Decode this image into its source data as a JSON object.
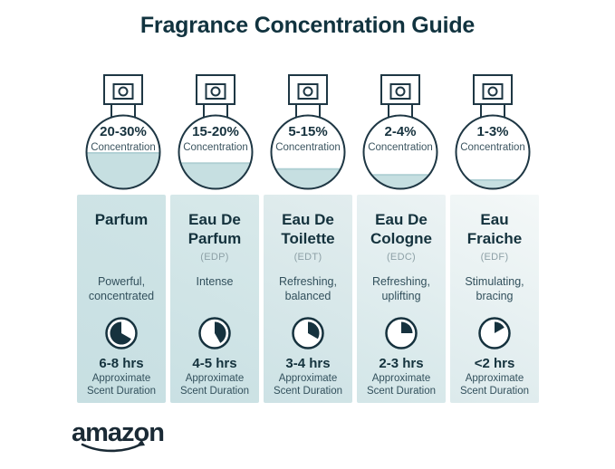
{
  "page": {
    "title": "Fragrance Concentration Guide",
    "brand_logo": "amazon"
  },
  "colors": {
    "title_text": "#11333f",
    "outline": "#1e3744",
    "liquid_fill": "#c6dfe1",
    "panel_teal": "#cfe4e6",
    "panel_light": "#f4f8f8",
    "abbr_gray": "#8da0a6"
  },
  "shared": {
    "concentration_label": "Concentration",
    "duration_label": "Approximate Scent Duration"
  },
  "columns": [
    {
      "concentration": "20-30%",
      "bottle_fill_percent": 50,
      "name": "Parfum",
      "abbr": "",
      "description": "Powerful, concentrated",
      "duration": "6-8 hrs",
      "clock": {
        "start_deg": 120,
        "end_deg": 360,
        "filled_hours_of_12": 8
      }
    },
    {
      "concentration": "15-20%",
      "bottle_fill_percent": 36,
      "name": "Eau De Parfum",
      "abbr": "(EDP)",
      "description": "Intense",
      "duration": "4-5 hrs",
      "clock": {
        "start_deg": 0,
        "end_deg": 150,
        "filled_hours_of_12": 5
      }
    },
    {
      "concentration": "5-15%",
      "bottle_fill_percent": 28,
      "name": "Eau De Toilette",
      "abbr": "(EDT)",
      "description": "Refreshing, balanced",
      "duration": "3-4 hrs",
      "clock": {
        "start_deg": 0,
        "end_deg": 120,
        "filled_hours_of_12": 4
      }
    },
    {
      "concentration": "2-4%",
      "bottle_fill_percent": 20,
      "name": "Eau De Cologne",
      "abbr": "(EDC)",
      "description": "Refreshing, uplifting",
      "duration": "2-3 hrs",
      "clock": {
        "start_deg": 0,
        "end_deg": 90,
        "filled_hours_of_12": 3
      }
    },
    {
      "concentration": "1-3%",
      "bottle_fill_percent": 13,
      "name": "Eau Fraiche",
      "abbr": "(EDF)",
      "description": "Stimulating, bracing",
      "duration": "<2 hrs",
      "clock": {
        "start_deg": 0,
        "end_deg": 60,
        "filled_hours_of_12": 2
      }
    }
  ]
}
